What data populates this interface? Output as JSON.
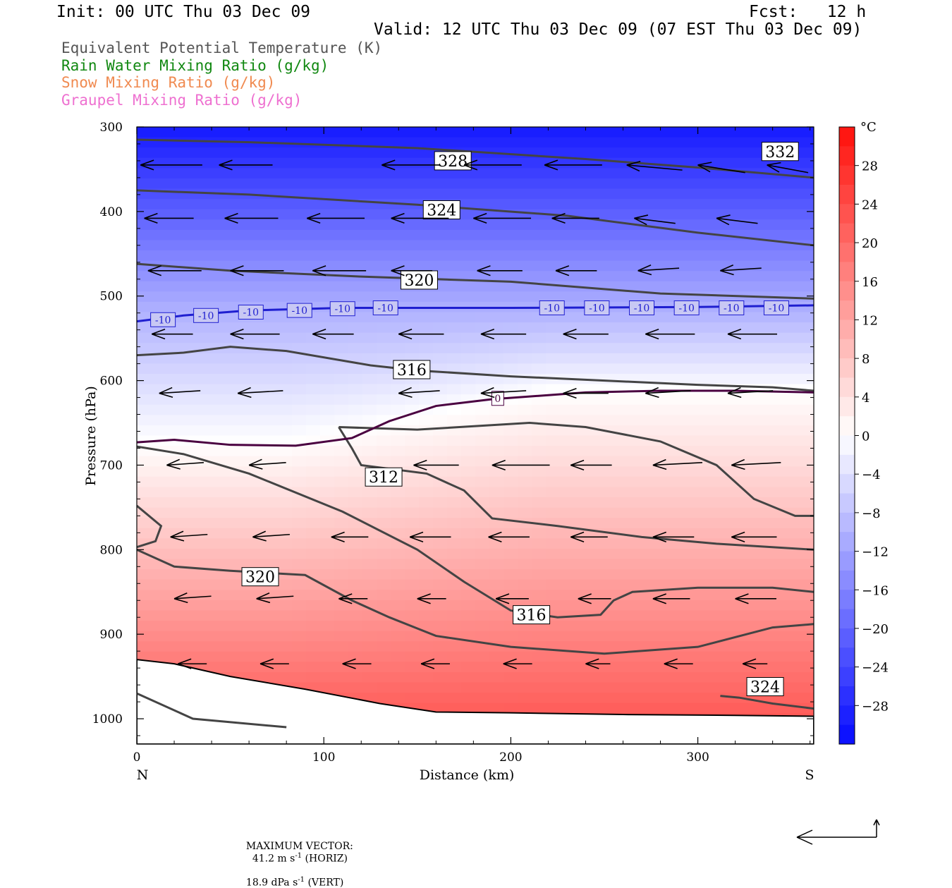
{
  "header": {
    "init": "Init: 00 UTC Thu 03 Dec 09",
    "fcst": "Fcst:   12 h",
    "valid": "Valid: 12 UTC Thu 03 Dec 09 (07 EST Thu 03 Dec 09)"
  },
  "legend_lines": [
    {
      "text": "Equivalent Potential Temperature (K)",
      "color": "#555555"
    },
    {
      "text": "Rain Water Mixing Ratio (g/kg)",
      "color": "#118811"
    },
    {
      "text": "Snow Mixing Ratio (g/kg)",
      "color": "#f08a50"
    },
    {
      "text": "Graupel Mixing Ratio (g/kg)",
      "color": "#ee70d0"
    }
  ],
  "chart_data": {
    "type": "heatmap",
    "xlabel": "Distance (km)",
    "ylabel": "Pressure (hPa)",
    "xlim": [
      0,
      362
    ],
    "ylim": [
      1030,
      300
    ],
    "x_ticks": [
      0,
      100,
      200,
      300
    ],
    "y_ticks": [
      300,
      400,
      500,
      600,
      700,
      800,
      900,
      1000
    ],
    "x_end_labels": {
      "left": "N",
      "right": "S"
    },
    "colorbar": {
      "unit": "°C",
      "ticks": [
        28,
        24,
        20,
        16,
        12,
        8,
        4,
        0,
        -4,
        -8,
        -12,
        -16,
        -20,
        -24,
        -28
      ],
      "range": [
        -32,
        32
      ]
    },
    "temperature_contours": [
      {
        "label": "-10",
        "color": "#1f1fd0",
        "points": [
          [
            0,
            530
          ],
          [
            25,
            523
          ],
          [
            60,
            517
          ],
          [
            110,
            514
          ],
          [
            200,
            514
          ],
          [
            300,
            513
          ],
          [
            362,
            511
          ]
        ],
        "label_x": [
          14,
          37,
          61,
          87,
          110,
          133,
          222,
          246,
          270,
          294,
          318,
          342
        ],
        "label_p": [
          528,
          523,
          519,
          517,
          515,
          514,
          514,
          514,
          514,
          514,
          514,
          514
        ]
      },
      {
        "label": "0",
        "color": "#4a0040",
        "points": [
          [
            0,
            673
          ],
          [
            20,
            670
          ],
          [
            50,
            676
          ],
          [
            85,
            677
          ],
          [
            115,
            668
          ],
          [
            135,
            648
          ],
          [
            160,
            630
          ],
          [
            190,
            622
          ],
          [
            240,
            614
          ],
          [
            280,
            612
          ],
          [
            320,
            612
          ],
          [
            362,
            614
          ]
        ],
        "label_x": [
          193
        ],
        "label_p": [
          621
        ]
      }
    ],
    "theta_e_contours": [
      {
        "points": [
          [
            0,
            315
          ],
          [
            60,
            318
          ],
          [
            150,
            325
          ],
          [
            240,
            338
          ],
          [
            300,
            348
          ],
          [
            362,
            360
          ]
        ]
      },
      {
        "points": [
          [
            0,
            375
          ],
          [
            60,
            380
          ],
          [
            150,
            392
          ],
          [
            230,
            405
          ],
          [
            300,
            425
          ],
          [
            362,
            440
          ]
        ]
      },
      {
        "points": [
          [
            0,
            462
          ],
          [
            50,
            470
          ],
          [
            120,
            477
          ],
          [
            200,
            483
          ],
          [
            280,
            497
          ],
          [
            362,
            503
          ]
        ]
      },
      {
        "points": [
          [
            0,
            570
          ],
          [
            25,
            567
          ],
          [
            50,
            560
          ],
          [
            80,
            565
          ],
          [
            125,
            582
          ],
          [
            150,
            588
          ],
          [
            200,
            595
          ],
          [
            300,
            605
          ],
          [
            340,
            608
          ],
          [
            362,
            612
          ]
        ]
      },
      {
        "points": [
          [
            108,
            655
          ],
          [
            115,
            680
          ],
          [
            120,
            700
          ],
          [
            155,
            710
          ],
          [
            175,
            730
          ],
          [
            190,
            763
          ],
          [
            225,
            772
          ],
          [
            270,
            785
          ],
          [
            310,
            793
          ],
          [
            362,
            800
          ]
        ]
      },
      {
        "points": [
          [
            108,
            655
          ],
          [
            150,
            658
          ],
          [
            210,
            650
          ],
          [
            240,
            655
          ],
          [
            280,
            672
          ],
          [
            310,
            700
          ],
          [
            330,
            740
          ],
          [
            352,
            760
          ],
          [
            362,
            760
          ]
        ]
      },
      {
        "points": [
          [
            0,
            678
          ],
          [
            25,
            687
          ],
          [
            60,
            710
          ],
          [
            110,
            755
          ],
          [
            150,
            800
          ],
          [
            175,
            838
          ],
          [
            200,
            872
          ],
          [
            225,
            880
          ],
          [
            248,
            877
          ],
          [
            255,
            860
          ],
          [
            265,
            850
          ],
          [
            300,
            845
          ],
          [
            340,
            845
          ],
          [
            362,
            850
          ]
        ]
      },
      {
        "points": [
          [
            0,
            797
          ],
          [
            10,
            790
          ],
          [
            13,
            772
          ],
          [
            0,
            748
          ]
        ]
      },
      {
        "points": [
          [
            0,
            800
          ],
          [
            20,
            820
          ],
          [
            50,
            825
          ],
          [
            90,
            830
          ],
          [
            115,
            860
          ],
          [
            135,
            880
          ],
          [
            160,
            902
          ],
          [
            200,
            915
          ],
          [
            250,
            923
          ],
          [
            300,
            915
          ],
          [
            340,
            892
          ],
          [
            362,
            888
          ]
        ]
      },
      {
        "points": [
          [
            0,
            970
          ],
          [
            30,
            1000
          ],
          [
            80,
            1010
          ]
        ]
      },
      {
        "points": [
          [
            312,
            973
          ],
          [
            322,
            975
          ],
          [
            340,
            982
          ],
          [
            362,
            988
          ]
        ]
      }
    ],
    "contour_labels": [
      {
        "text": "328",
        "x": 169,
        "p": 340
      },
      {
        "text": "332",
        "x": 344,
        "p": 329
      },
      {
        "text": "324",
        "x": 163,
        "p": 398
      },
      {
        "text": "320",
        "x": 151,
        "p": 481
      },
      {
        "text": "316",
        "x": 147,
        "p": 587
      },
      {
        "text": "312",
        "x": 132,
        "p": 714
      },
      {
        "text": "320",
        "x": 66,
        "p": 832
      },
      {
        "text": "316",
        "x": 211,
        "p": 877
      },
      {
        "text": "324",
        "x": 336,
        "p": 962
      }
    ],
    "wind_vector_rows": [
      {
        "p": 345,
        "xs": [
          2,
          44,
          131,
          175,
          218,
          262,
          300,
          337
        ],
        "u": [
          -30,
          -26,
          -28,
          -28,
          -28,
          -27,
          -23,
          -20
        ],
        "w": [
          0,
          0,
          0,
          0,
          0,
          -2,
          -3,
          -3
        ]
      },
      {
        "p": 408,
        "xs": [
          4,
          47,
          91,
          136,
          180,
          222,
          266,
          310
        ],
        "u": [
          -24,
          -26,
          -28,
          -28,
          -28,
          -23,
          -20,
          -20
        ],
        "w": [
          0,
          0,
          0,
          0,
          0,
          0,
          -2,
          -2
        ]
      },
      {
        "p": 470,
        "xs": [
          6,
          50,
          94,
          136,
          182,
          224,
          268,
          312
        ],
        "u": [
          -26,
          -26,
          -26,
          -20,
          -22,
          -20,
          -20,
          -20
        ],
        "w": [
          0,
          0,
          0,
          0,
          0,
          0,
          1,
          1
        ]
      },
      {
        "p": 545,
        "xs": [
          8,
          50,
          94,
          140,
          184,
          228,
          272,
          316
        ],
        "u": [
          -20,
          -24,
          -20,
          -22,
          -22,
          -22,
          -24,
          -24
        ],
        "w": [
          0,
          0,
          0,
          0,
          0,
          0,
          0,
          0
        ]
      },
      {
        "p": 615,
        "xs": [
          12,
          54,
          140,
          184,
          228,
          272,
          316
        ],
        "u": [
          -20,
          -22,
          -20,
          -22,
          -22,
          -22,
          -22
        ],
        "w": [
          1,
          1,
          1,
          1,
          0,
          1,
          1
        ]
      },
      {
        "p": 700,
        "xs": [
          16,
          60,
          148,
          190,
          232,
          276,
          318
        ],
        "u": [
          -18,
          -18,
          -22,
          -28,
          -20,
          -24,
          -24
        ],
        "w": [
          1,
          1,
          0,
          0,
          0,
          1,
          1
        ]
      },
      {
        "p": 785,
        "xs": [
          18,
          62,
          104,
          146,
          188,
          232,
          276,
          318
        ],
        "u": [
          -18,
          -18,
          -18,
          -20,
          -20,
          -18,
          -20,
          -22
        ],
        "w": [
          1,
          1,
          0,
          0,
          0,
          0,
          0,
          0
        ]
      },
      {
        "p": 858,
        "xs": [
          20,
          64,
          108,
          150,
          192,
          236,
          276,
          320
        ],
        "u": [
          -18,
          -18,
          -14,
          -14,
          -16,
          -16,
          -18,
          -20
        ],
        "w": [
          1,
          1,
          0,
          0,
          0,
          0,
          0,
          0
        ]
      },
      {
        "p": 935,
        "xs": [
          22,
          66,
          110,
          152,
          196,
          240,
          282,
          324
        ],
        "u": [
          -14,
          -14,
          -14,
          -14,
          -14,
          -12,
          -14,
          -12
        ],
        "w": [
          0,
          0,
          0,
          0,
          0,
          0,
          0,
          0
        ]
      }
    ]
  },
  "footer": {
    "max_vector_label": "MAXIMUM VECTOR:",
    "horiz_value": "41.2 m s",
    "horiz_exp": "-1",
    "horiz_tag": " (HORIZ)",
    "vert_value": "18.9 dPa s",
    "vert_exp": "-1",
    "vert_tag": " (VERT)"
  }
}
